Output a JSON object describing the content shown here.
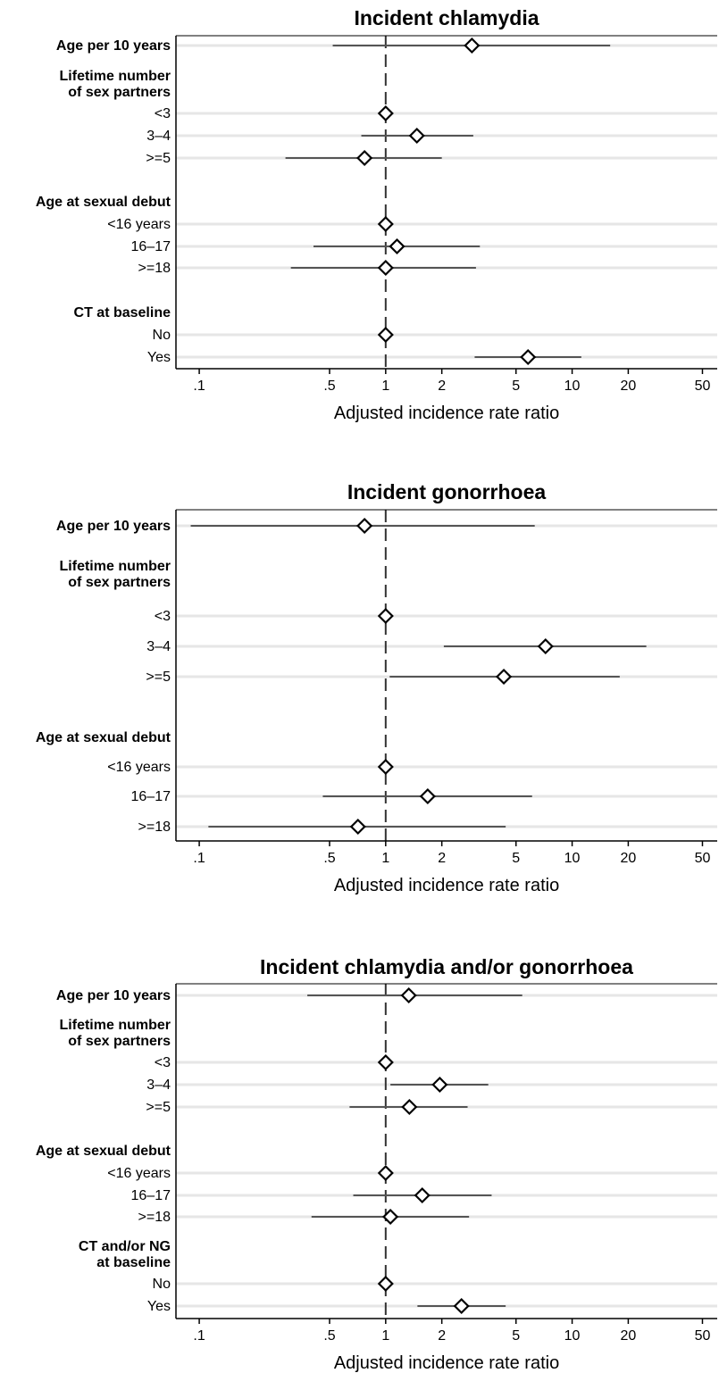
{
  "chart_data": [
    {
      "type": "forest",
      "title": "Incident chlamydia",
      "xlabel": "Adjusted incidence rate ratio",
      "x_scale": "log",
      "xlim": [
        0.075,
        60
      ],
      "xticks": [
        0.1,
        0.5,
        1,
        2,
        5,
        10,
        20,
        50
      ],
      "xtick_labels": [
        ".1",
        ".5",
        "1",
        "2",
        "5",
        "10",
        "20",
        "50"
      ],
      "reference_line": 1,
      "rows": [
        {
          "label": "Age per 10 years",
          "bold": true,
          "est": 2.9,
          "lo": 0.52,
          "hi": 16
        },
        {
          "label": "Lifetime number\nof sex partners",
          "bold": true,
          "header": true
        },
        {
          "label": "<3",
          "bold": false,
          "est": 1.0,
          "lo": null,
          "hi": null
        },
        {
          "label": "3–4",
          "bold": false,
          "est": 1.47,
          "lo": 0.74,
          "hi": 2.95
        },
        {
          "label": ">=5",
          "bold": false,
          "est": 0.77,
          "lo": 0.29,
          "hi": 2.0
        },
        {
          "label": "",
          "spacer": true
        },
        {
          "label": "Age at sexual debut",
          "bold": true,
          "header": true
        },
        {
          "label": "<16 years",
          "bold": false,
          "est": 1.0,
          "lo": null,
          "hi": null
        },
        {
          "label": "16–17",
          "bold": false,
          "est": 1.15,
          "lo": 0.41,
          "hi": 3.2
        },
        {
          "label": ">=18",
          "bold": false,
          "est": 1.0,
          "lo": 0.31,
          "hi": 3.05
        },
        {
          "label": "",
          "spacer": true
        },
        {
          "label": "CT at baseline",
          "bold": true,
          "header": true
        },
        {
          "label": "No",
          "bold": false,
          "est": 1.0,
          "lo": null,
          "hi": null
        },
        {
          "label": "Yes",
          "bold": false,
          "est": 5.8,
          "lo": 3.0,
          "hi": 11.2
        }
      ]
    },
    {
      "type": "forest",
      "title": "Incident gonorrhoea",
      "xlabel": "Adjusted incidence rate ratio",
      "x_scale": "log",
      "xlim": [
        0.075,
        60
      ],
      "xticks": [
        0.1,
        0.5,
        1,
        2,
        5,
        10,
        20,
        50
      ],
      "xtick_labels": [
        ".1",
        ".5",
        "1",
        "2",
        "5",
        "10",
        "20",
        "50"
      ],
      "reference_line": 1,
      "rows": [
        {
          "label": "Age per 10 years",
          "bold": true,
          "est": 0.77,
          "lo": 0.09,
          "hi": 6.3
        },
        {
          "label": "Lifetime number\nof sex partners",
          "bold": true,
          "header": true
        },
        {
          "label": "<3",
          "bold": false,
          "est": 1.0,
          "lo": null,
          "hi": null
        },
        {
          "label": "3–4",
          "bold": false,
          "est": 7.2,
          "lo": 2.05,
          "hi": 25
        },
        {
          "label": ">=5",
          "bold": false,
          "est": 4.3,
          "lo": 1.05,
          "hi": 18
        },
        {
          "label": "",
          "spacer": true
        },
        {
          "label": "Age at sexual debut",
          "bold": true,
          "header": true
        },
        {
          "label": "<16 years",
          "bold": false,
          "est": 1.0,
          "lo": null,
          "hi": null
        },
        {
          "label": "16–17",
          "bold": false,
          "est": 1.68,
          "lo": 0.46,
          "hi": 6.1
        },
        {
          "label": ">=18",
          "bold": false,
          "est": 0.71,
          "lo": 0.112,
          "hi": 4.4
        }
      ]
    },
    {
      "type": "forest",
      "title": "Incident chlamydia and/or gonorrhoea",
      "xlabel": "Adjusted incidence rate ratio",
      "x_scale": "log",
      "xlim": [
        0.075,
        60
      ],
      "xticks": [
        0.1,
        0.5,
        1,
        2,
        5,
        10,
        20,
        50
      ],
      "xtick_labels": [
        ".1",
        ".5",
        "1",
        "2",
        "5",
        "10",
        "20",
        "50"
      ],
      "reference_line": 1,
      "rows": [
        {
          "label": "Age per 10 years",
          "bold": true,
          "est": 1.33,
          "lo": 0.38,
          "hi": 5.4
        },
        {
          "label": "Lifetime number\nof sex partners",
          "bold": true,
          "header": true
        },
        {
          "label": "<3",
          "bold": false,
          "est": 1.0,
          "lo": null,
          "hi": null
        },
        {
          "label": "3–4",
          "bold": false,
          "est": 1.95,
          "lo": 1.06,
          "hi": 3.55
        },
        {
          "label": ">=5",
          "bold": false,
          "est": 1.34,
          "lo": 0.64,
          "hi": 2.75
        },
        {
          "label": "",
          "spacer": true
        },
        {
          "label": "Age at sexual debut",
          "bold": true,
          "header": true
        },
        {
          "label": "<16 years",
          "bold": false,
          "est": 1.0,
          "lo": null,
          "hi": null
        },
        {
          "label": "16–17",
          "bold": false,
          "est": 1.57,
          "lo": 0.67,
          "hi": 3.7
        },
        {
          "label": ">=18",
          "bold": false,
          "est": 1.06,
          "lo": 0.4,
          "hi": 2.8
        },
        {
          "label": "",
          "spacer": true
        },
        {
          "label": "CT and/or NG\nat baseline",
          "bold": true,
          "header": true
        },
        {
          "label": "No",
          "bold": false,
          "est": 1.0,
          "lo": null,
          "hi": null
        },
        {
          "label": "Yes",
          "bold": false,
          "est": 2.55,
          "lo": 1.48,
          "hi": 4.4
        }
      ]
    }
  ]
}
